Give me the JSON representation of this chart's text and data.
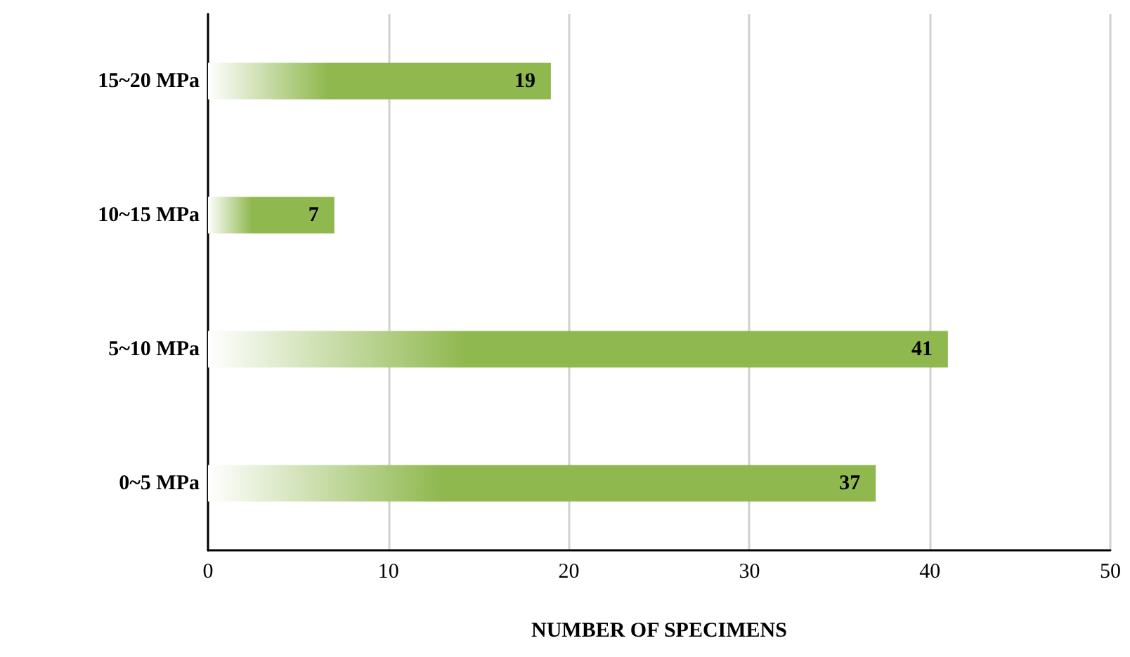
{
  "chart_data": {
    "type": "bar",
    "orientation": "horizontal",
    "xlabel": "NUMBER OF SPECIMENS",
    "categories": [
      "15~20 MPa",
      "10~15 MPa",
      "5~10 MPa",
      "0~5 MPa"
    ],
    "values": [
      19,
      7,
      41,
      37
    ],
    "color": "#8fb84e",
    "xlim": [
      0,
      50
    ],
    "xticks": [
      0,
      10,
      20,
      30,
      40,
      50
    ],
    "grid": "x",
    "data_labels": true
  }
}
